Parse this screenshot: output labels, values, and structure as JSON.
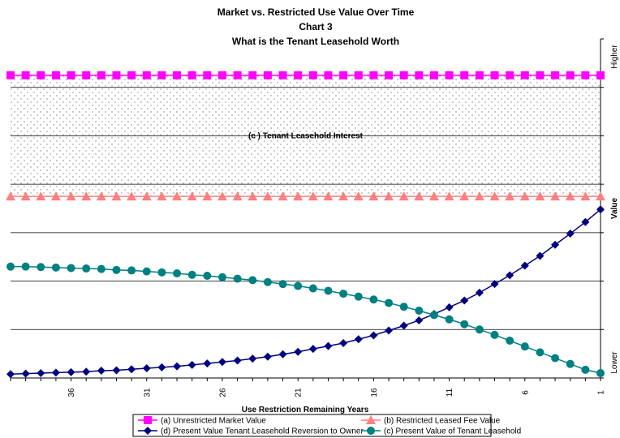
{
  "chart_data": {
    "type": "line",
    "title_lines": [
      "Market vs. Restricted Use Value Over Time",
      "Chart 3",
      "What is the Tenant Leasehold Worth"
    ],
    "xlabel": "Use Restriction Remaining Years",
    "ylabel": "Value",
    "y_tick_labels": {
      "top": "Higher",
      "bottom": "Lower"
    },
    "x": [
      40,
      39,
      38,
      37,
      36,
      35,
      34,
      33,
      32,
      31,
      30,
      29,
      28,
      27,
      26,
      25,
      24,
      23,
      22,
      21,
      20,
      19,
      18,
      17,
      16,
      15,
      14,
      13,
      12,
      11,
      10,
      9,
      8,
      7,
      6,
      5,
      4,
      3,
      2,
      1
    ],
    "x_tick_labels": [
      36,
      31,
      26,
      21,
      16,
      11,
      6,
      1
    ],
    "xlim": [
      40,
      1
    ],
    "ylim": [
      0,
      7
    ],
    "grid": true,
    "band_label": "(c ) Tenant Leasehold Interest",
    "series": [
      {
        "name": "(a) Unrestricted Market Value",
        "color": "#ff00ff",
        "marker": "square",
        "values": [
          6.25,
          6.25,
          6.25,
          6.25,
          6.25,
          6.25,
          6.25,
          6.25,
          6.25,
          6.25,
          6.25,
          6.25,
          6.25,
          6.25,
          6.25,
          6.25,
          6.25,
          6.25,
          6.25,
          6.25,
          6.25,
          6.25,
          6.25,
          6.25,
          6.25,
          6.25,
          6.25,
          6.25,
          6.25,
          6.25,
          6.25,
          6.25,
          6.25,
          6.25,
          6.25,
          6.25,
          6.25,
          6.25,
          6.25,
          6.25
        ]
      },
      {
        "name": "(b) Restricted Leased Fee Value",
        "color": "#ff8080",
        "marker": "triangle",
        "values": [
          3.75,
          3.75,
          3.75,
          3.75,
          3.75,
          3.75,
          3.75,
          3.75,
          3.75,
          3.75,
          3.75,
          3.75,
          3.75,
          3.75,
          3.75,
          3.75,
          3.75,
          3.75,
          3.75,
          3.75,
          3.75,
          3.75,
          3.75,
          3.75,
          3.75,
          3.75,
          3.75,
          3.75,
          3.75,
          3.75,
          3.75,
          3.75,
          3.75,
          3.75,
          3.75,
          3.75,
          3.75,
          3.75,
          3.75,
          3.75
        ]
      },
      {
        "name": "(d) Present Value Tenant Leasehold Reversion to Owner",
        "color": "#000080",
        "marker": "diamond",
        "values": [
          0.08,
          0.09,
          0.1,
          0.11,
          0.12,
          0.13,
          0.15,
          0.16,
          0.18,
          0.2,
          0.22,
          0.24,
          0.27,
          0.3,
          0.33,
          0.36,
          0.4,
          0.44,
          0.49,
          0.54,
          0.6,
          0.66,
          0.72,
          0.8,
          0.88,
          0.98,
          1.08,
          1.19,
          1.32,
          1.46,
          1.6,
          1.76,
          1.94,
          2.12,
          2.32,
          2.52,
          2.75,
          2.98,
          3.22,
          3.48
        ]
      },
      {
        "name": "(c) Present Value of Tenant Leasehold",
        "color": "#008080",
        "marker": "circle",
        "values": [
          2.3,
          2.3,
          2.29,
          2.28,
          2.27,
          2.26,
          2.25,
          2.23,
          2.22,
          2.2,
          2.18,
          2.16,
          2.13,
          2.11,
          2.08,
          2.05,
          2.02,
          1.98,
          1.94,
          1.9,
          1.85,
          1.8,
          1.74,
          1.68,
          1.62,
          1.55,
          1.47,
          1.39,
          1.3,
          1.21,
          1.11,
          1.0,
          0.89,
          0.77,
          0.65,
          0.53,
          0.41,
          0.29,
          0.17,
          0.1
        ]
      }
    ]
  }
}
